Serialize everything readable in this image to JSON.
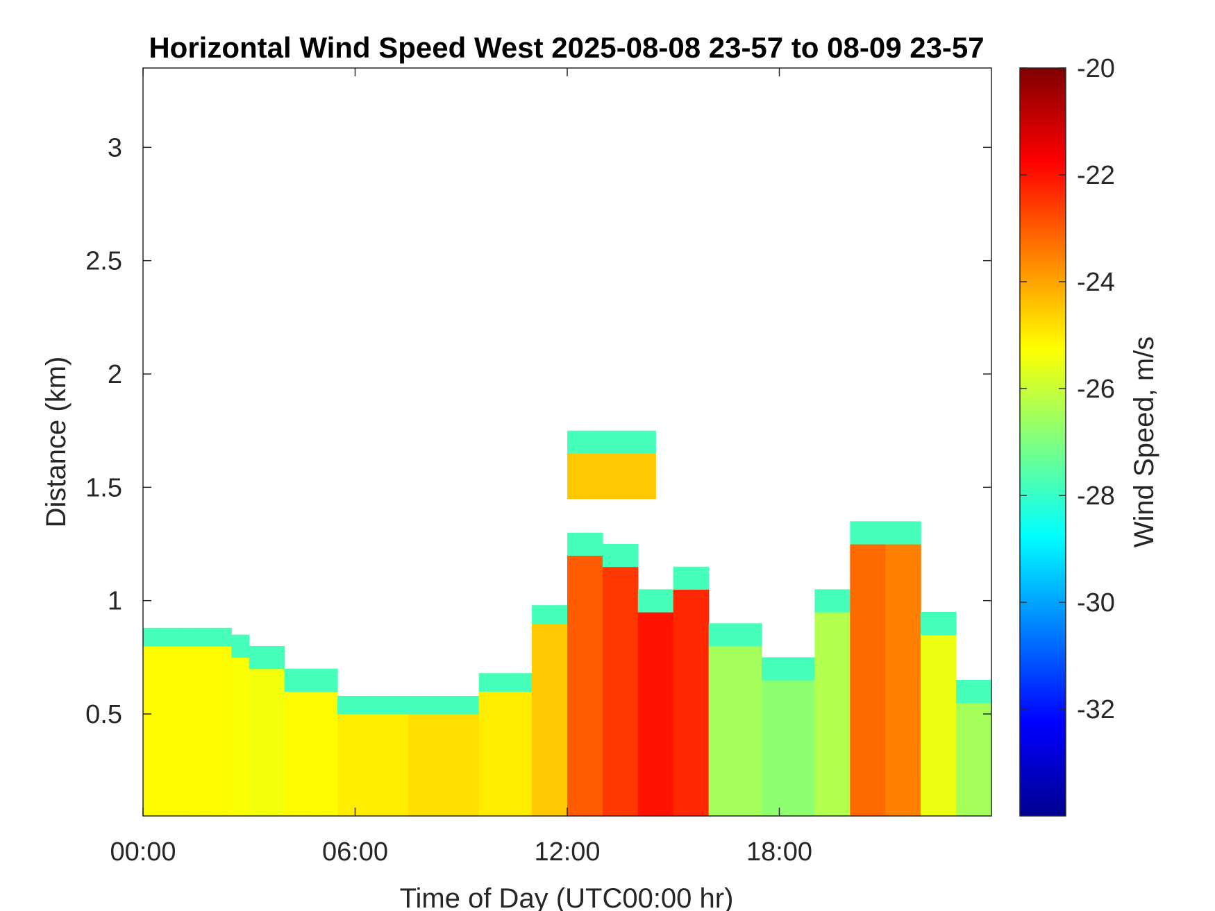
{
  "chart_data": {
    "type": "heatmap",
    "title": "Horizontal Wind Speed West 2025-08-08 23-57 to 08-09 23-57",
    "xlabel": "Time of Day (UTC00:00 hr)",
    "ylabel": "Distance (km)",
    "colorbar_label": "Wind Speed, m/s",
    "xlim": [
      0,
      24
    ],
    "ylim": [
      0.05,
      3.35
    ],
    "clim": [
      -34,
      -20
    ],
    "colormap": "jet",
    "x_ticks": [
      {
        "value": 0,
        "label": "00:00"
      },
      {
        "value": 6,
        "label": "06:00"
      },
      {
        "value": 12,
        "label": "12:00"
      },
      {
        "value": 18,
        "label": "18:00"
      }
    ],
    "y_ticks": [
      {
        "value": 0.5,
        "label": "0.5"
      },
      {
        "value": 1,
        "label": "1"
      },
      {
        "value": 1.5,
        "label": "1.5"
      },
      {
        "value": 2,
        "label": "2"
      },
      {
        "value": 2.5,
        "label": "2.5"
      },
      {
        "value": 3,
        "label": "3"
      }
    ],
    "colorbar_ticks": [
      {
        "value": -20,
        "label": "-20"
      },
      {
        "value": -22,
        "label": "-22"
      },
      {
        "value": -24,
        "label": "-24"
      },
      {
        "value": -26,
        "label": "-26"
      },
      {
        "value": -28,
        "label": "-28"
      },
      {
        "value": -30,
        "label": "-30"
      },
      {
        "value": -32,
        "label": "-32"
      }
    ],
    "grid": false,
    "time_bin_hours": 0.5,
    "height_bin_km": 0.05,
    "regions": [
      {
        "x_start": 0.0,
        "x_end": 2.5,
        "y_bottom": 0.05,
        "y_top": 0.88,
        "value": -25.2
      },
      {
        "x_start": 2.5,
        "x_end": 3.0,
        "y_bottom": 0.05,
        "y_top": 0.85,
        "value": -25.3
      },
      {
        "x_start": 3.0,
        "x_end": 4.0,
        "y_bottom": 0.05,
        "y_top": 0.8,
        "value": -25.4
      },
      {
        "x_start": 4.0,
        "x_end": 5.5,
        "y_bottom": 0.05,
        "y_top": 0.7,
        "value": -25.2
      },
      {
        "x_start": 5.5,
        "x_end": 7.5,
        "y_bottom": 0.05,
        "y_top": 0.58,
        "value": -25.0
      },
      {
        "x_start": 7.5,
        "x_end": 9.5,
        "y_bottom": 0.05,
        "y_top": 0.58,
        "value": -24.8
      },
      {
        "x_start": 9.5,
        "x_end": 11.0,
        "y_bottom": 0.05,
        "y_top": 0.68,
        "value": -25.0
      },
      {
        "x_start": 11.0,
        "x_end": 12.0,
        "y_bottom": 0.05,
        "y_top": 0.98,
        "value": -24.5
      },
      {
        "x_start": 12.0,
        "x_end": 13.0,
        "y_bottom": 0.05,
        "y_top": 1.3,
        "value": -23.0
      },
      {
        "x_start": 13.0,
        "x_end": 14.0,
        "y_bottom": 0.05,
        "y_top": 1.25,
        "value": -22.5
      },
      {
        "x_start": 14.0,
        "x_end": 15.0,
        "y_bottom": 0.05,
        "y_top": 1.05,
        "value": -22.0
      },
      {
        "x_start": 15.0,
        "x_end": 16.0,
        "y_bottom": 0.05,
        "y_top": 1.15,
        "value": -22.3
      },
      {
        "x_start": 16.0,
        "x_end": 17.5,
        "y_bottom": 0.05,
        "y_top": 0.9,
        "value": -26.5
      },
      {
        "x_start": 17.5,
        "x_end": 19.0,
        "y_bottom": 0.05,
        "y_top": 0.75,
        "value": -26.8
      },
      {
        "x_start": 19.0,
        "x_end": 20.0,
        "y_bottom": 0.05,
        "y_top": 1.05,
        "value": -26.3
      },
      {
        "x_start": 20.0,
        "x_end": 21.0,
        "y_bottom": 0.05,
        "y_top": 1.35,
        "value": -23.2
      },
      {
        "x_start": 21.0,
        "x_end": 22.0,
        "y_bottom": 0.05,
        "y_top": 1.35,
        "value": -23.5
      },
      {
        "x_start": 22.0,
        "x_end": 23.0,
        "y_bottom": 0.05,
        "y_top": 0.95,
        "value": -25.5
      },
      {
        "x_start": 23.0,
        "x_end": 24.0,
        "y_bottom": 0.05,
        "y_top": 0.65,
        "value": -26.5
      },
      {
        "x_start": 12.0,
        "x_end": 14.5,
        "y_bottom": 1.45,
        "y_top": 1.75,
        "value": -24.5
      }
    ],
    "edge_band": {
      "thickness_km": 0.12,
      "value": -27.8
    }
  }
}
